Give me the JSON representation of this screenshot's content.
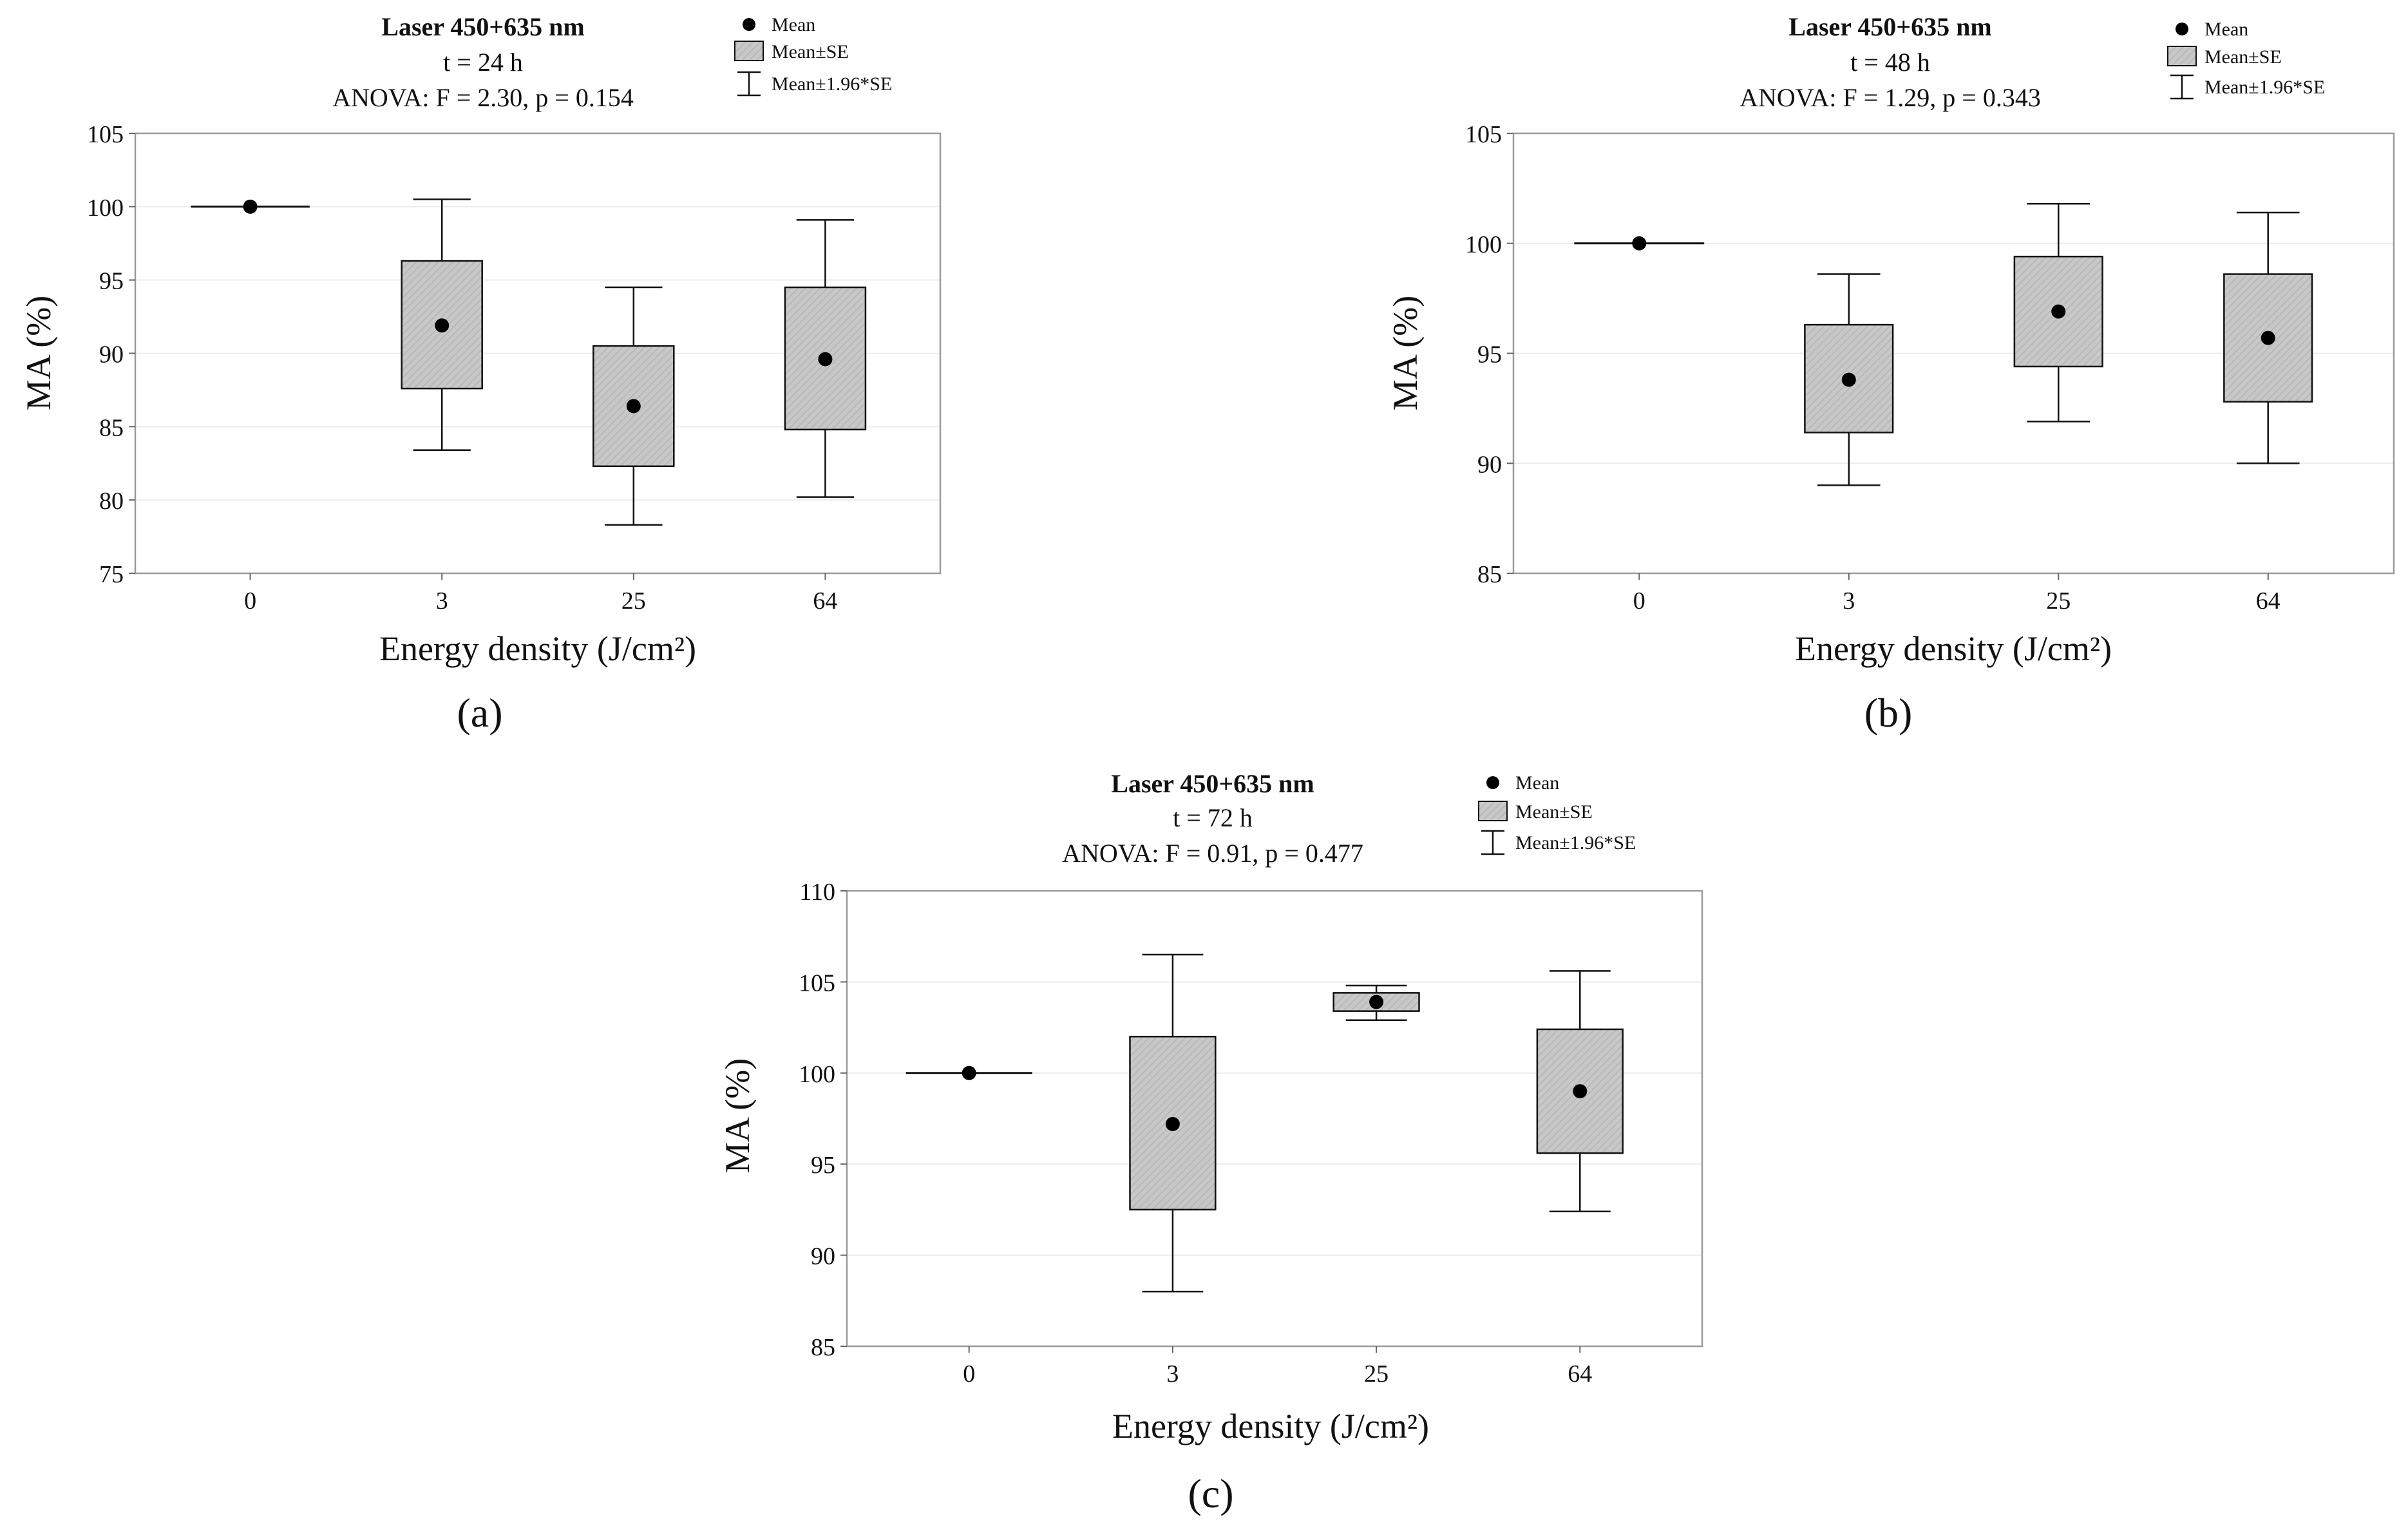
{
  "chart_data": [
    {
      "type": "box",
      "panel_label": "(a)",
      "title": "Laser 450+635 nm",
      "subtitle": "t = 24 h",
      "annotation": "ANOVA: F = 2.30, p = 0.154",
      "xlabel": "Energy density (J/cm²)",
      "ylabel": "MA (%)",
      "ylim": [
        75,
        105
      ],
      "yticks": [
        75,
        80,
        85,
        90,
        95,
        100,
        105
      ],
      "categories": [
        "0",
        "3",
        "25",
        "64"
      ],
      "mean": [
        100,
        91.9,
        86.4,
        89.6
      ],
      "se_low": [
        100,
        87.6,
        82.3,
        84.8
      ],
      "se_high": [
        100,
        96.3,
        90.5,
        94.5
      ],
      "ci_low": [
        100,
        83.4,
        78.3,
        80.2
      ],
      "ci_high": [
        100,
        100.5,
        94.5,
        99.1
      ],
      "legend": [
        "Mean",
        "Mean±SE",
        "Mean±1.96*SE"
      ]
    },
    {
      "type": "box",
      "panel_label": "(b)",
      "title": "Laser 450+635 nm",
      "subtitle": "t = 48 h",
      "annotation": "ANOVA: F = 1.29, p = 0.343",
      "xlabel": "Energy density (J/cm²)",
      "ylabel": "MA (%)",
      "ylim": [
        85,
        105
      ],
      "yticks": [
        85,
        90,
        95,
        100,
        105
      ],
      "categories": [
        "0",
        "3",
        "25",
        "64"
      ],
      "mean": [
        100,
        93.8,
        96.9,
        95.7
      ],
      "se_low": [
        100,
        91.4,
        94.4,
        92.8
      ],
      "se_high": [
        100,
        96.3,
        99.4,
        98.6
      ],
      "ci_low": [
        100,
        89.0,
        91.9,
        90.0
      ],
      "ci_high": [
        100,
        98.6,
        101.8,
        101.4
      ],
      "legend": [
        "Mean",
        "Mean±SE",
        "Mean±1.96*SE"
      ]
    },
    {
      "type": "box",
      "panel_label": "(c)",
      "title": "Laser 450+635 nm",
      "subtitle": "t = 72 h",
      "annotation": "ANOVA: F = 0.91, p = 0.477",
      "xlabel": "Energy density (J/cm²)",
      "ylabel": "MA (%)",
      "ylim": [
        85,
        110
      ],
      "yticks": [
        85,
        90,
        95,
        100,
        105,
        110
      ],
      "categories": [
        "0",
        "3",
        "25",
        "64"
      ],
      "mean": [
        100,
        97.2,
        103.9,
        99.0
      ],
      "se_low": [
        100,
        92.5,
        103.4,
        95.6
      ],
      "se_high": [
        100,
        102.0,
        104.4,
        102.4
      ],
      "ci_low": [
        100,
        88.0,
        102.9,
        92.4
      ],
      "ci_high": [
        100,
        106.5,
        104.8,
        105.6
      ],
      "legend": [
        "Mean",
        "Mean±SE",
        "Mean±1.96*SE"
      ]
    }
  ]
}
